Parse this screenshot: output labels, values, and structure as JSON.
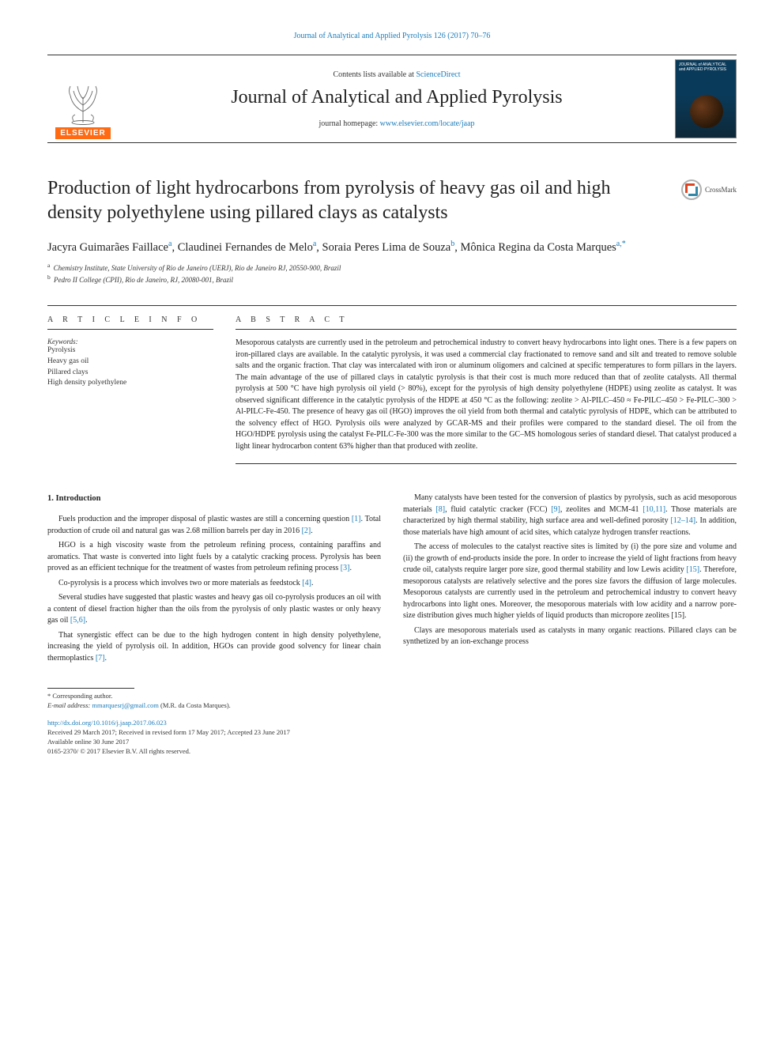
{
  "header": {
    "top_citation": "Journal of Analytical and Applied Pyrolysis 126 (2017) 70–76",
    "contents_prefix": "Contents lists available at ",
    "contents_link": "ScienceDirect",
    "journal_name": "Journal of Analytical and Applied Pyrolysis",
    "homepage_prefix": "journal homepage: ",
    "homepage_link": "www.elsevier.com/locate/jaap",
    "elsevier_label": "ELSEVIER",
    "cover_title": "JOURNAL of ANALYTICAL and APPLIED PYROLYSIS",
    "crossmark_label": "CrossMark"
  },
  "article": {
    "title": "Production of light hydrocarbons from pyrolysis of heavy gas oil and high density polyethylene using pillared clays as catalysts",
    "authors_html": [
      {
        "name": "Jacyra Guimarães Faillace",
        "sup": "a"
      },
      {
        "name": "Claudinei Fernandes de Melo",
        "sup": "a"
      },
      {
        "name": "Soraia Peres Lima de Souza",
        "sup": "b"
      },
      {
        "name": "Mônica Regina da Costa Marques",
        "sup": "a,*"
      }
    ],
    "affiliations": [
      {
        "sup": "a",
        "text": "Chemistry Institute, State University of Rio de Janeiro (UERJ), Rio de Janeiro RJ, 20550-900, Brazil"
      },
      {
        "sup": "b",
        "text": "Pedro II College (CPII), Rio de Janeiro, RJ, 20080-001, Brazil"
      }
    ]
  },
  "sections": {
    "article_info_head": "A R T I C L E   I N F O",
    "abstract_head": "A B S T R A C T",
    "keywords_label": "Keywords:",
    "keywords": [
      "Pyrolysis",
      "Heavy gas oil",
      "Pillared clays",
      "High density polyethylene"
    ],
    "abstract": "Mesoporous catalysts are currently used in the petroleum and petrochemical industry to convert heavy hydrocarbons into light ones. There is a few papers on iron-pillared clays are available. In the catalytic pyrolysis, it was used a commercial clay fractionated to remove sand and silt and treated to remove soluble salts and the organic fraction. That clay was intercalated with iron or aluminum oligomers and calcined at specific temperatures to form pillars in the layers. The main advantage of the use of pillared clays in catalytic pyrolysis is that their cost is much more reduced than that of zeolite catalysts. All thermal pyrolysis at 500 °C have high pyrolysis oil yield (> 80%), except for the pyrolysis of high density polyethylene (HDPE) using zeolite as catalyst. It was observed significant difference in the catalytic pyrolysis of the HDPE at 450 °C as the following: zeolite > Al-PILC–450 ≈ Fe-PILC–450 > Fe-PILC–300 > Al-PILC-Fe-450. The presence of heavy gas oil (HGO) improves the oil yield from both thermal and catalytic pyrolysis of HDPE, which can be attributed to the solvency effect of HGO. Pyrolysis oils were analyzed by GCAR-MS and their profiles were compared to the standard diesel. The oil from the HGO/HDPE pyrolysis using the catalyst Fe-PILC-Fe-300 was the more similar to the GC–MS homologous series of standard diesel. That catalyst produced a light linear hydrocarbon content 63% higher than that produced with zeolite."
  },
  "body": {
    "intro_heading": "1. Introduction",
    "left": [
      {
        "t": "Fuels production and the improper disposal of plastic wastes are still a concerning question [1]. Total production of crude oil and natural gas was 2.68 million barrels per day in 2016 [2].",
        "refs": [
          "[1]",
          "[2]"
        ]
      },
      {
        "t": "HGO is a high viscosity waste from the petroleum refining process, containing paraffins and aromatics. That waste is converted into light fuels by a catalytic cracking process. Pyrolysis has been proved as an efficient technique for the treatment of wastes from petroleum refining process [3].",
        "refs": [
          "[3]"
        ]
      },
      {
        "t": "Co-pyrolysis is a process which involves two or more materials as feedstock [4].",
        "refs": [
          "[4]"
        ]
      },
      {
        "t": "Several studies have suggested that plastic wastes and heavy gas oil co-pyrolysis produces an oil with a content of diesel fraction higher than the oils from the pyrolysis of only plastic wastes or only heavy gas oil [5,6].",
        "refs": [
          "[5,6]"
        ]
      },
      {
        "t": "That synergistic effect can be due to the high hydrogen content in high density polyethylene, increasing the yield of pyrolysis oil. In addition, HGOs can provide good solvency for linear chain thermoplastics [7].",
        "refs": [
          "[7]"
        ]
      }
    ],
    "right": [
      {
        "t": "Many catalysts have been tested for the conversion of plastics by pyrolysis, such as acid mesoporous materials [8], fluid catalytic cracker (FCC) [9], zeolites and MCM-41 [10,11]. Those materials are characterized by high thermal stability, high surface area and well-defined porosity [12–14]. In addition, those materials have high amount of acid sites, which catalyze hydrogen transfer reactions.",
        "refs": [
          "[8]",
          "[9]",
          "[10,11]",
          "[12–14]"
        ]
      },
      {
        "t": "The access of molecules to the catalyst reactive sites is limited by (i) the pore size and volume and (ii) the growth of end-products inside the pore. In order to increase the yield of light fractions from heavy crude oil, catalysts require larger pore size, good thermal stability and low Lewis acidity [15]. Therefore, mesoporous catalysts are relatively selective and the pores size favors the diffusion of large molecules. Mesoporous catalysts are currently used in the petroleum and petrochemical industry to convert heavy hydrocarbons into light ones. Moreover, the mesoporous materials with low acidity and a narrow pore-size distribution gives much higher yields of liquid products than micropore zeolites [15].",
        "refs": [
          "[15]",
          "[15]"
        ]
      },
      {
        "t": "Clays are mesoporous materials used as catalysts in many organic reactions. Pillared clays can be synthetized by an ion-exchange process",
        "refs": []
      }
    ]
  },
  "footer": {
    "corr_label": "* Corresponding author.",
    "email_label": "E-mail address:",
    "email": "mmarquesrj@gmail.com",
    "email_attr": " (M.R. da Costa Marques).",
    "doi": "http://dx.doi.org/10.1016/j.jaap.2017.06.023",
    "history": "Received 29 March 2017; Received in revised form 17 May 2017; Accepted 23 June 2017",
    "available": "Available online 30 June 2017",
    "copyright": "0165-2370/ © 2017 Elsevier B.V. All rights reserved."
  },
  "colors": {
    "link": "#1a7bb9",
    "elsevier_orange": "#ff6a13",
    "text": "#1a1a1a",
    "rule": "#333333"
  },
  "typography": {
    "body_fontsize_pt": 10,
    "title_fontsize_pt": 24,
    "journal_fontsize_pt": 24,
    "keywords_fontsize_pt": 9.5
  }
}
